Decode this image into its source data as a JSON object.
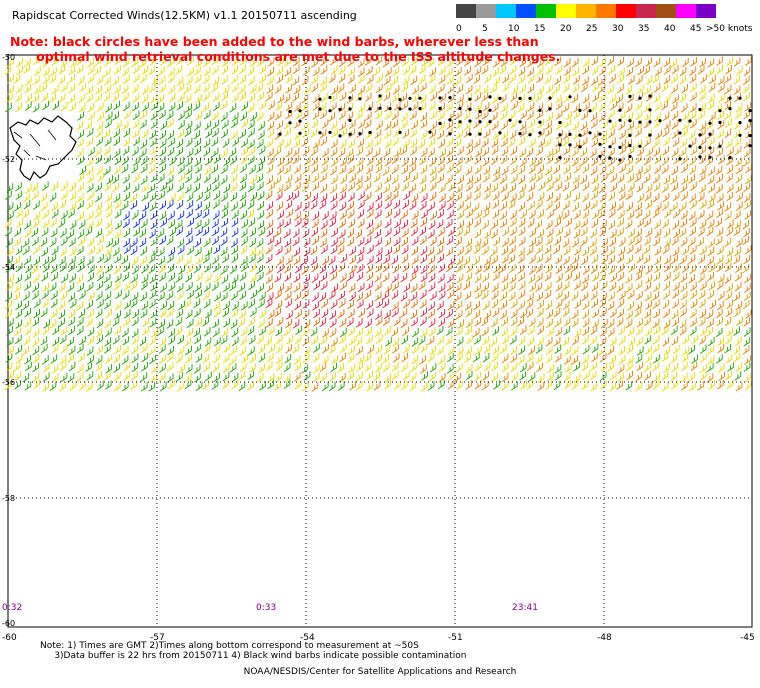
{
  "title": "Rapidscat Corrected Winds(12.5KM) v1.1 20150711 ascending",
  "note_line1": "Note: black circles have been added to the wind barbs, wherever less than",
  "note_line2": "optimal wind retrieval conditions are met due to the ISS altitude changes.",
  "legend": {
    "labels": [
      "0",
      "5",
      "10",
      "15",
      "20",
      "25",
      "30",
      "35",
      "40",
      "45",
      ">50 knots"
    ],
    "colors": [
      "#444444",
      "#9a9a9a",
      "#00c8ff",
      "#0050ff",
      "#00c000",
      "#ffff00",
      "#ffb400",
      "#ff7800",
      "#ff0000",
      "#c82850",
      "#a05014",
      "#ff00ff",
      "#7800c8"
    ]
  },
  "axes": {
    "lon_labels": [
      "-60",
      "-57",
      "-54",
      "-51",
      "-48",
      "-45"
    ],
    "lat_labels": [
      "-50",
      "-52",
      "-54",
      "-56",
      "-58",
      "-60"
    ]
  },
  "times": [
    "0:32",
    "0:33",
    "23:41"
  ],
  "footer_line1": "Note: 1) Times are GMT 2)Times along bottom correspond to measurement at ~50S",
  "footer_line2": "3)Data buffer is 22 hrs from 20150711 4) Black wind barbs indicate possible contamination",
  "credit": "NOAA/NESDIS/Center for Satellite Applications and Research"
}
